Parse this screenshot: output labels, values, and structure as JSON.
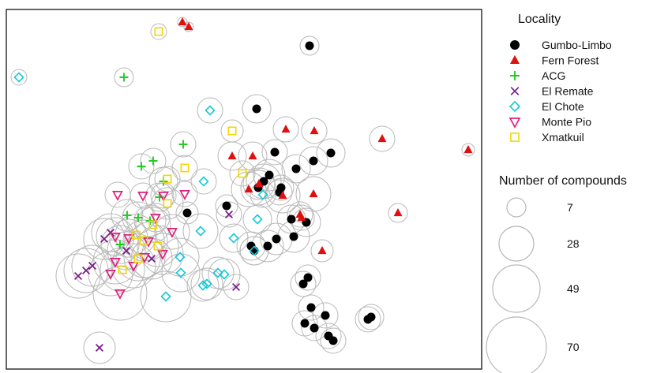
{
  "chart_data": {
    "type": "scatter",
    "legend_locality_title": "Locality",
    "legend_size_title": "Number of compounds",
    "size_scale": [
      7,
      28,
      49,
      70
    ],
    "legend_placement": "right",
    "grid": false,
    "series": [
      {
        "name": "Gumbo-Limbo",
        "marker": "filled-circle",
        "color": "#000000",
        "points": [
          [
            392,
            58,
            12
          ],
          [
            325,
            138,
            18
          ],
          [
            397,
            204,
            18
          ],
          [
            419,
            194,
            18
          ],
          [
            375,
            214,
            18
          ],
          [
            348,
            193,
            16
          ],
          [
            341,
            222,
            20
          ],
          [
            334,
            230,
            22
          ],
          [
            327,
            238,
            22
          ],
          [
            356,
            238,
            16
          ],
          [
            354,
            244,
            16
          ],
          [
            287,
            261,
            14
          ],
          [
            237,
            270,
            14
          ],
          [
            369,
            278,
            18
          ],
          [
            388,
            282,
            18
          ],
          [
            372,
            300,
            20
          ],
          [
            350,
            303,
            20
          ],
          [
            339,
            312,
            20
          ],
          [
            318,
            312,
            18
          ],
          [
            322,
            318,
            18
          ],
          [
            390,
            352,
            16
          ],
          [
            384,
            360,
            16
          ],
          [
            394,
            390,
            16
          ],
          [
            386,
            410,
            16
          ],
          [
            398,
            416,
            16
          ],
          [
            412,
            400,
            16
          ],
          [
            416,
            426,
            16
          ],
          [
            422,
            432,
            16
          ],
          [
            466,
            405,
            16
          ],
          [
            470,
            402,
            16
          ]
        ]
      },
      {
        "name": "Fern Forest",
        "marker": "triangle",
        "color": "#e01010",
        "points": [
          [
            231,
            28,
            6
          ],
          [
            239,
            34,
            6
          ],
          [
            362,
            164,
            16
          ],
          [
            398,
            166,
            16
          ],
          [
            484,
            176,
            16
          ],
          [
            593,
            190,
            8
          ],
          [
            294,
            198,
            18
          ],
          [
            320,
            198,
            18
          ],
          [
            315,
            240,
            22
          ],
          [
            328,
            233,
            20
          ],
          [
            358,
            248,
            22
          ],
          [
            397,
            246,
            22
          ],
          [
            380,
            272,
            16
          ],
          [
            382,
            276,
            16
          ],
          [
            504,
            270,
            12
          ],
          [
            408,
            318,
            14
          ]
        ]
      },
      {
        "name": "ACG",
        "marker": "plus",
        "color": "#22cc22",
        "points": [
          [
            157,
            98,
            12
          ],
          [
            232,
            183,
            16
          ],
          [
            194,
            204,
            16
          ],
          [
            179,
            211,
            16
          ],
          [
            207,
            230,
            18
          ],
          [
            202,
            250,
            18
          ],
          [
            161,
            273,
            20
          ],
          [
            175,
            276,
            20
          ],
          [
            190,
            280,
            20
          ],
          [
            152,
            310,
            24
          ]
        ]
      },
      {
        "name": "El Remate",
        "marker": "x",
        "color": "#7a1a8a",
        "points": [
          [
            290,
            272,
            16
          ],
          [
            140,
            295,
            24
          ],
          [
            132,
            303,
            26
          ],
          [
            160,
            318,
            24
          ],
          [
            117,
            337,
            26
          ],
          [
            109,
            343,
            28
          ],
          [
            99,
            350,
            28
          ],
          [
            192,
            328,
            26
          ],
          [
            299,
            364,
            16
          ],
          [
            126,
            441,
            20
          ]
        ]
      },
      {
        "name": "El Chote",
        "marker": "diamond",
        "color": "#18c8d8",
        "points": [
          [
            24,
            98,
            10
          ],
          [
            266,
            140,
            16
          ],
          [
            258,
            230,
            16
          ],
          [
            333,
            247,
            16
          ],
          [
            326,
            278,
            18
          ],
          [
            254,
            293,
            22
          ],
          [
            296,
            302,
            18
          ],
          [
            322,
            318,
            18
          ],
          [
            228,
            326,
            24
          ],
          [
            229,
            346,
            24
          ],
          [
            276,
            346,
            20
          ],
          [
            284,
            348,
            20
          ],
          [
            262,
            360,
            20
          ],
          [
            257,
            362,
            20
          ],
          [
            210,
            376,
            32
          ]
        ]
      },
      {
        "name": "Monte Pio",
        "marker": "triangle-down",
        "color": "#e0207a",
        "points": [
          [
            149,
            247,
            16
          ],
          [
            181,
            248,
            16
          ],
          [
            207,
            248,
            16
          ],
          [
            234,
            246,
            16
          ],
          [
            197,
            276,
            18
          ],
          [
            218,
            294,
            22
          ],
          [
            188,
            306,
            24
          ],
          [
            163,
            302,
            24
          ],
          [
            146,
            300,
            24
          ],
          [
            206,
            322,
            26
          ],
          [
            183,
            326,
            26
          ],
          [
            146,
            332,
            28
          ],
          [
            169,
            337,
            28
          ],
          [
            140,
            347,
            28
          ],
          [
            152,
            372,
            34
          ]
        ]
      },
      {
        "name": "Xmatkuil",
        "marker": "square",
        "color": "#f0d800",
        "points": [
          [
            201,
            40,
            10
          ],
          [
            294,
            166,
            14
          ],
          [
            234,
            213,
            16
          ],
          [
            307,
            220,
            16
          ],
          [
            212,
            227,
            16
          ],
          [
            212,
            258,
            20
          ],
          [
            194,
            285,
            22
          ],
          [
            172,
            298,
            26
          ],
          [
            182,
            305,
            26
          ],
          [
            200,
            312,
            26
          ],
          [
            175,
            328,
            28
          ],
          [
            155,
            342,
            28
          ]
        ]
      }
    ]
  }
}
